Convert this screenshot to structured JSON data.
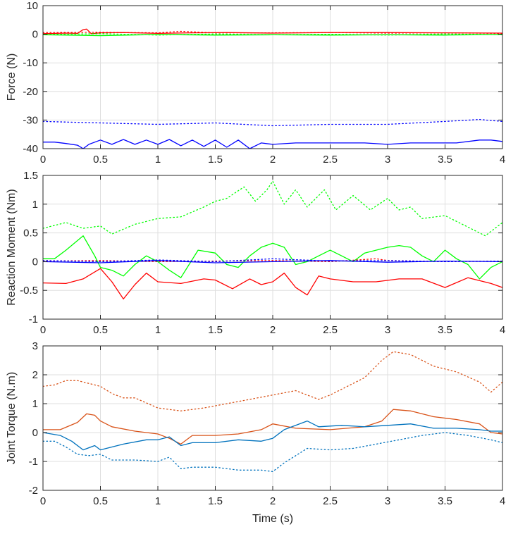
{
  "chart_data": [
    {
      "type": "line",
      "title": "",
      "xlabel": "",
      "ylabel": "Force (N)",
      "xlim": [
        0,
        4
      ],
      "ylim": [
        -40,
        10
      ],
      "xticks": [
        0,
        0.5,
        1,
        1.5,
        2,
        2.5,
        3,
        3.5,
        4
      ],
      "xtick_labels": [
        "0",
        "0.5",
        "1",
        "1.5",
        "2",
        "2.5",
        "3",
        "3.5",
        "4"
      ],
      "yticks": [
        -40,
        -30,
        -20,
        -10,
        0,
        10
      ],
      "ytick_labels": [
        "-40",
        "-30",
        "-20",
        "-10",
        "0",
        "10"
      ],
      "grid": true,
      "series": [
        {
          "color": "#ff0000",
          "style": "solid",
          "x": [
            0,
            0.2,
            0.3,
            0.35,
            0.38,
            0.42,
            0.5,
            0.7,
            1.0,
            1.3,
            1.6,
            2.0,
            2.5,
            3.0,
            3.5,
            4.0
          ],
          "y": [
            0.2,
            0.4,
            0.3,
            1.6,
            1.8,
            0.2,
            0.5,
            0.6,
            0.3,
            0.5,
            0.6,
            0.4,
            0.6,
            0.6,
            0.5,
            0.4
          ]
        },
        {
          "color": "#ff0000",
          "style": "dotted",
          "x": [
            0,
            0.5,
            1.0,
            1.2,
            1.5,
            2.0,
            2.5,
            3.0,
            3.5,
            4.0
          ],
          "y": [
            0.6,
            0.7,
            0.5,
            1.0,
            0.5,
            0.5,
            0.6,
            0.4,
            0.5,
            0.3
          ]
        },
        {
          "color": "#00ff00",
          "style": "solid",
          "x": [
            0,
            0.5,
            1.0,
            1.5,
            2.0,
            2.5,
            3.0,
            3.5,
            4.0
          ],
          "y": [
            -0.2,
            -0.5,
            -0.1,
            -0.3,
            -0.2,
            -0.3,
            -0.2,
            -0.3,
            -0.1
          ]
        },
        {
          "color": "#00ff00",
          "style": "dotted",
          "x": [
            0,
            0.5,
            1.0,
            1.5,
            2.0,
            2.5,
            3.0,
            3.5,
            4.0
          ],
          "y": [
            -0.1,
            0.2,
            -0.3,
            0.1,
            -0.2,
            0.0,
            -0.3,
            0.1,
            -0.2
          ]
        },
        {
          "color": "#0000ff",
          "style": "solid",
          "x": [
            0,
            0.1,
            0.2,
            0.3,
            0.35,
            0.4,
            0.5,
            0.6,
            0.7,
            0.8,
            0.9,
            1.0,
            1.1,
            1.2,
            1.3,
            1.4,
            1.5,
            1.6,
            1.7,
            1.8,
            1.9,
            2.0,
            2.2,
            2.4,
            2.6,
            2.8,
            3.0,
            3.2,
            3.4,
            3.6,
            3.8,
            3.9,
            4.0
          ],
          "y": [
            -37.7,
            -37.7,
            -38.2,
            -38.8,
            -40.0,
            -38.5,
            -37.0,
            -38.5,
            -36.8,
            -38.5,
            -37.0,
            -38.5,
            -36.8,
            -39.0,
            -37.0,
            -39.2,
            -37.0,
            -39.5,
            -37.0,
            -40.0,
            -38.0,
            -38.5,
            -38.0,
            -38.0,
            -38.0,
            -38.0,
            -38.5,
            -38.0,
            -38.0,
            -38.0,
            -37.0,
            -37.0,
            -37.5
          ]
        },
        {
          "color": "#0000ff",
          "style": "dotted",
          "x": [
            0,
            0.5,
            1.0,
            1.5,
            2.0,
            2.5,
            3.0,
            3.5,
            3.8,
            4.0
          ],
          "y": [
            -30.5,
            -31.0,
            -31.5,
            -31.0,
            -32.0,
            -31.5,
            -31.5,
            -30.5,
            -29.8,
            -30.5
          ]
        }
      ]
    },
    {
      "type": "line",
      "title": "",
      "xlabel": "",
      "ylabel": "Reaction Moment (Nm)",
      "xlim": [
        0,
        4
      ],
      "ylim": [
        -1,
        1.5
      ],
      "xticks": [
        0,
        0.5,
        1,
        1.5,
        2,
        2.5,
        3,
        3.5,
        4
      ],
      "xtick_labels": [
        "0",
        "0.5",
        "1",
        "1.5",
        "2",
        "2.5",
        "3",
        "3.5",
        "4"
      ],
      "yticks": [
        -1,
        -0.5,
        0,
        0.5,
        1,
        1.5
      ],
      "ytick_labels": [
        "-1",
        "-0.5",
        "0",
        "0.5",
        "1",
        "1.5"
      ],
      "grid": true,
      "series": [
        {
          "color": "#ff0000",
          "style": "solid",
          "x": [
            0,
            0.2,
            0.35,
            0.5,
            0.6,
            0.7,
            0.8,
            0.9,
            1.0,
            1.2,
            1.4,
            1.5,
            1.65,
            1.8,
            1.9,
            2.0,
            2.1,
            2.2,
            2.3,
            2.4,
            2.5,
            2.7,
            2.9,
            3.1,
            3.3,
            3.5,
            3.7,
            3.9,
            4.0
          ],
          "y": [
            -0.37,
            -0.38,
            -0.3,
            -0.12,
            -0.35,
            -0.65,
            -0.4,
            -0.2,
            -0.35,
            -0.38,
            -0.3,
            -0.32,
            -0.47,
            -0.3,
            -0.4,
            -0.35,
            -0.2,
            -0.45,
            -0.58,
            -0.25,
            -0.3,
            -0.35,
            -0.35,
            -0.3,
            -0.3,
            -0.45,
            -0.28,
            -0.38,
            -0.45
          ]
        },
        {
          "color": "#ff0000",
          "style": "dotted",
          "x": [
            0,
            0.5,
            1.0,
            1.5,
            2.0,
            2.5,
            2.9,
            3.0,
            3.5,
            4.0
          ],
          "y": [
            0.01,
            0.02,
            0.0,
            0.01,
            0.02,
            0.0,
            0.05,
            0.02,
            0.0,
            0.01
          ]
        },
        {
          "color": "#00ff00",
          "style": "solid",
          "x": [
            0,
            0.1,
            0.2,
            0.35,
            0.45,
            0.5,
            0.6,
            0.7,
            0.8,
            0.9,
            1.0,
            1.1,
            1.2,
            1.35,
            1.5,
            1.6,
            1.7,
            1.8,
            1.9,
            2.0,
            2.1,
            2.2,
            2.3,
            2.4,
            2.5,
            2.6,
            2.7,
            2.8,
            2.9,
            3.0,
            3.1,
            3.2,
            3.3,
            3.4,
            3.5,
            3.6,
            3.7,
            3.8,
            3.9,
            4.0
          ],
          "y": [
            0.05,
            0.05,
            0.2,
            0.45,
            0.1,
            -0.1,
            -0.15,
            -0.25,
            -0.05,
            0.1,
            0.0,
            -0.15,
            -0.28,
            0.2,
            0.15,
            -0.05,
            -0.1,
            0.1,
            0.25,
            0.32,
            0.25,
            -0.05,
            0.0,
            0.1,
            0.2,
            0.1,
            0.0,
            0.15,
            0.2,
            0.25,
            0.28,
            0.25,
            0.1,
            0.0,
            0.2,
            0.05,
            -0.05,
            -0.3,
            -0.1,
            0.0
          ]
        },
        {
          "color": "#00ff00",
          "style": "dotted",
          "x": [
            0,
            0.2,
            0.35,
            0.5,
            0.6,
            0.8,
            1.0,
            1.2,
            1.4,
            1.5,
            1.6,
            1.75,
            1.85,
            1.95,
            2.0,
            2.1,
            2.2,
            2.3,
            2.45,
            2.55,
            2.7,
            2.85,
            3.0,
            3.1,
            3.2,
            3.3,
            3.5,
            3.7,
            3.85,
            4.0
          ],
          "y": [
            0.58,
            0.68,
            0.58,
            0.62,
            0.48,
            0.65,
            0.75,
            0.78,
            0.95,
            1.05,
            1.1,
            1.3,
            1.05,
            1.25,
            1.4,
            1.0,
            1.25,
            0.95,
            1.25,
            0.9,
            1.15,
            0.9,
            1.1,
            0.9,
            0.95,
            0.75,
            0.8,
            0.6,
            0.45,
            0.68
          ]
        },
        {
          "color": "#0000ff",
          "style": "solid",
          "x": [
            0,
            0.5,
            1.0,
            1.5,
            2.0,
            2.5,
            3.0,
            3.5,
            4.0
          ],
          "y": [
            0.0,
            -0.02,
            0.02,
            -0.02,
            0.0,
            0.02,
            -0.01,
            0.01,
            0.0
          ]
        },
        {
          "color": "#0000ff",
          "style": "dotted",
          "x": [
            0,
            0.5,
            1.0,
            1.5,
            2.0,
            2.5,
            3.0,
            3.5,
            4.0
          ],
          "y": [
            0.02,
            0.0,
            0.03,
            0.0,
            0.05,
            0.01,
            0.02,
            0.0,
            0.01
          ]
        }
      ]
    },
    {
      "type": "line",
      "title": "",
      "xlabel": "Time (s)",
      "ylabel": "Joint Torque (N.m)",
      "xlim": [
        0,
        4
      ],
      "ylim": [
        -2,
        3
      ],
      "xticks": [
        0,
        0.5,
        1,
        1.5,
        2,
        2.5,
        3,
        3.5,
        4
      ],
      "xtick_labels": [
        "0",
        "0.5",
        "1",
        "1.5",
        "2",
        "2.5",
        "3",
        "3.5",
        "4"
      ],
      "yticks": [
        -2,
        -1,
        0,
        1,
        2,
        3
      ],
      "ytick_labels": [
        "-2",
        "-1",
        "0",
        "1",
        "2",
        "3"
      ],
      "grid": true,
      "series": [
        {
          "color": "#d95319",
          "style": "solid",
          "x": [
            0,
            0.15,
            0.3,
            0.38,
            0.45,
            0.5,
            0.6,
            0.8,
            1.0,
            1.1,
            1.2,
            1.3,
            1.5,
            1.7,
            1.9,
            2.0,
            2.2,
            2.5,
            2.8,
            2.95,
            3.05,
            3.2,
            3.4,
            3.6,
            3.8,
            3.9,
            4.0
          ],
          "y": [
            0.1,
            0.1,
            0.35,
            0.65,
            0.6,
            0.4,
            0.2,
            0.05,
            -0.05,
            -0.2,
            -0.4,
            -0.1,
            -0.1,
            -0.05,
            0.1,
            0.3,
            0.15,
            0.1,
            0.2,
            0.4,
            0.8,
            0.75,
            0.55,
            0.45,
            0.3,
            0.0,
            -0.05
          ]
        },
        {
          "color": "#d95319",
          "style": "dotted",
          "x": [
            0,
            0.1,
            0.2,
            0.3,
            0.5,
            0.6,
            0.7,
            0.8,
            1.0,
            1.2,
            1.4,
            1.6,
            1.8,
            2.0,
            2.2,
            2.4,
            2.5,
            2.6,
            2.8,
            2.95,
            3.05,
            3.2,
            3.4,
            3.6,
            3.8,
            3.9,
            4.0
          ],
          "y": [
            1.6,
            1.65,
            1.8,
            1.8,
            1.6,
            1.35,
            1.2,
            1.2,
            0.85,
            0.75,
            0.85,
            1.0,
            1.15,
            1.3,
            1.45,
            1.15,
            1.3,
            1.5,
            1.9,
            2.5,
            2.8,
            2.7,
            2.3,
            2.1,
            1.75,
            1.4,
            1.75
          ]
        },
        {
          "color": "#0072bd",
          "style": "solid",
          "x": [
            0,
            0.15,
            0.25,
            0.35,
            0.45,
            0.5,
            0.7,
            0.9,
            1.0,
            1.1,
            1.2,
            1.3,
            1.5,
            1.7,
            1.9,
            2.0,
            2.1,
            2.3,
            2.4,
            2.6,
            2.8,
            3.0,
            3.2,
            3.4,
            3.6,
            3.8,
            3.9,
            4.0
          ],
          "y": [
            0.0,
            -0.1,
            -0.3,
            -0.6,
            -0.45,
            -0.6,
            -0.4,
            -0.25,
            -0.25,
            -0.15,
            -0.45,
            -0.35,
            -0.35,
            -0.25,
            -0.3,
            -0.2,
            0.1,
            0.4,
            0.2,
            0.25,
            0.2,
            0.25,
            0.3,
            0.15,
            0.15,
            0.1,
            0.05,
            0.05
          ]
        },
        {
          "color": "#0072bd",
          "style": "dotted",
          "x": [
            0,
            0.1,
            0.2,
            0.3,
            0.4,
            0.5,
            0.6,
            0.8,
            1.0,
            1.1,
            1.2,
            1.3,
            1.5,
            1.7,
            1.9,
            2.0,
            2.1,
            2.2,
            2.3,
            2.5,
            2.7,
            2.9,
            3.1,
            3.3,
            3.5,
            3.7,
            3.9,
            4.0
          ],
          "y": [
            -0.3,
            -0.3,
            -0.5,
            -0.75,
            -0.8,
            -0.75,
            -0.95,
            -0.95,
            -1.0,
            -0.85,
            -1.25,
            -1.2,
            -1.2,
            -1.3,
            -1.3,
            -1.35,
            -1.05,
            -0.8,
            -0.55,
            -0.6,
            -0.55,
            -0.4,
            -0.25,
            -0.1,
            0.0,
            -0.1,
            -0.25,
            -0.35
          ]
        }
      ]
    }
  ]
}
